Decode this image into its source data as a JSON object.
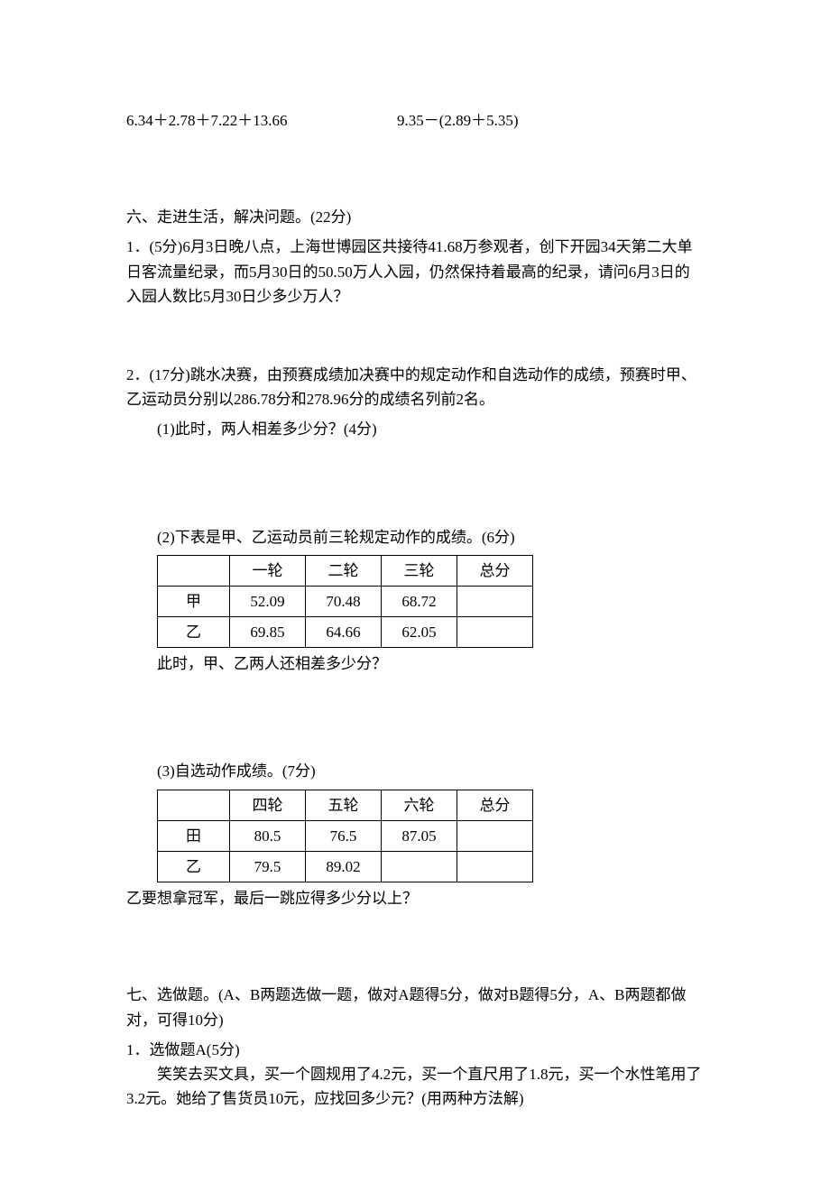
{
  "expressions": {
    "left": "6.34＋2.78＋7.22＋13.66",
    "right": "9.35－(2.89＋5.35)"
  },
  "section6": {
    "header": "六、走进生活，解决问题。(22分)",
    "q1": "1．(5分)6月3日晚八点，上海世博园区共接待41.68万参观者，创下开园34天第二大单日客流量纪录，而5月30日的50.50万人入园，仍然保持着最高的纪录，请问6月3日的入园人数比5月30日少多少万人？",
    "q2_intro": "2．(17分)跳水决赛，由预赛成绩加决赛中的规定动作和自选动作的成绩，预赛时甲、乙运动员分别以286.78分和278.96分的成绩名列前2名。",
    "q2_1": "(1)此时，两人相差多少分？(4分)",
    "q2_2": "(2)下表是甲、乙运动员前三轮规定动作的成绩。(6分)",
    "table1": {
      "headers": [
        "",
        "一轮",
        "二轮",
        "三轮",
        "总分"
      ],
      "rows": [
        [
          "甲",
          "52.09",
          "70.48",
          "68.72",
          ""
        ],
        [
          "乙",
          "69.85",
          "64.66",
          "62.05",
          ""
        ]
      ]
    },
    "q2_2_follow": "此时，甲、乙两人还相差多少分？",
    "q2_3": "(3)自选动作成绩。(7分)",
    "table2": {
      "headers": [
        "",
        "四轮",
        "五轮",
        "六轮",
        "总分"
      ],
      "rows": [
        [
          "田",
          "80.5",
          "76.5",
          "87.05",
          ""
        ],
        [
          "乙",
          "79.5",
          "89.02",
          "",
          ""
        ]
      ]
    },
    "q2_3_follow": "乙要想拿冠军，最后一跳应得多少分以上？"
  },
  "section7": {
    "header": "七、选做题。(A、B两题选做一题，做对A题得5分，做对B题得5分，A、B两题都做对，可得10分)",
    "qA_label": "1．选做题A(5分)",
    "qA_text": "笑笑去买文具，买一个圆规用了4.2元，买一个直尺用了1.8元，买一个水性笔用了3.2元。她给了售货员10元，应找回多少元？(用两种方法解)"
  }
}
